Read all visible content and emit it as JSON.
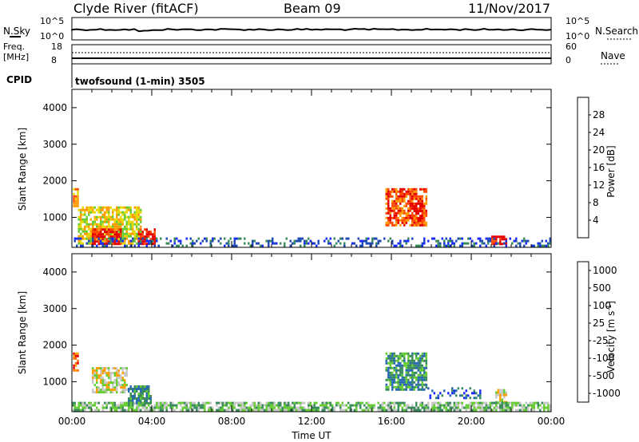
{
  "header": {
    "station": "Clyde River (fitACF)",
    "beam": "Beam 09",
    "date": "11/Nov/2017"
  },
  "top_panels": {
    "nsky_label": "N.Sky",
    "nsky_ticks": [
      "10^5",
      "10^0"
    ],
    "nsearch_label": "N.Search",
    "nsearch_ticks": [
      "10^5",
      "10^0"
    ],
    "freq_label_line1": "Freq.",
    "freq_label_line2": "[MHz]",
    "freq_ticks": [
      "18",
      "8"
    ],
    "nave_label": "Nave",
    "nave_ticks": [
      "60",
      "0"
    ],
    "cpid_label": "CPID",
    "cpid_text": "twofsound (1-min) 3505"
  },
  "chart_data": [
    {
      "type": "heatmap",
      "name": "power",
      "ylabel": "Slant Range [km]",
      "ylim": [
        180,
        4500
      ],
      "yticks": [
        "1000",
        "2000",
        "3000",
        "4000"
      ],
      "xticks": [
        "00:00",
        "04:00",
        "08:00",
        "12:00",
        "16:00",
        "20:00",
        "00:00"
      ],
      "colorbar_label": "Power [dB]",
      "colorbar_ticks": [
        "4",
        "8",
        "12",
        "16",
        "20",
        "24",
        "28"
      ],
      "colors": [
        "#1a2bff",
        "#1f4ab3",
        "#3a8c5e",
        "#66cc33",
        "#e6d800",
        "#ff9a00",
        "#ff4a00",
        "#e60000"
      ],
      "echo_regions": [
        {
          "t0": 0.05,
          "t1": 0.3,
          "r0": 1300,
          "r1": 1800,
          "level": 5
        },
        {
          "t0": 0.3,
          "t1": 3.5,
          "r0": 300,
          "r1": 1300,
          "level": 4
        },
        {
          "t0": 1.0,
          "t1": 2.5,
          "r0": 300,
          "r1": 700,
          "level": 7
        },
        {
          "t0": 3.3,
          "t1": 4.2,
          "r0": 300,
          "r1": 700,
          "level": 7
        },
        {
          "t0": 15.7,
          "t1": 17.8,
          "r0": 800,
          "r1": 1800,
          "level": 6
        },
        {
          "t0": 17.0,
          "t1": 17.6,
          "r0": 900,
          "r1": 1400,
          "level": 7
        },
        {
          "t0": 21.0,
          "t1": 21.8,
          "r0": 250,
          "r1": 500,
          "level": 7
        },
        {
          "t0": 0.0,
          "t1": 24.0,
          "r0": 200,
          "r1": 450,
          "level": 1
        }
      ]
    },
    {
      "type": "heatmap",
      "name": "velocity",
      "ylabel": "Slant Range [km]",
      "ylim": [
        180,
        4500
      ],
      "yticks": [
        "1000",
        "2000",
        "3000",
        "4000"
      ],
      "xticks": [
        "00:00",
        "04:00",
        "08:00",
        "12:00",
        "16:00",
        "20:00",
        "00:00"
      ],
      "xlabel": "Time UT",
      "colorbar_label": "Velocity [m s",
      "colorbar_label_sup": "-1",
      "colorbar_label_end": "]",
      "colorbar_ticks": [
        "1000",
        "500",
        "100",
        "25",
        "-25",
        "-100",
        "-500",
        "-1000"
      ],
      "colors": [
        "#1a2bff",
        "#2a6ab3",
        "#3a8c5e",
        "#66cc33",
        "#c8c8c8",
        "#ffa000",
        "#ff6a00",
        "#e60000"
      ],
      "echo_regions": [
        {
          "t0": 0.05,
          "t1": 0.3,
          "r0": 1300,
          "r1": 1800,
          "level": 6
        },
        {
          "t0": 1.0,
          "t1": 2.8,
          "r0": 700,
          "r1": 1400,
          "level": 4
        },
        {
          "t0": 2.8,
          "t1": 4.0,
          "r0": 400,
          "r1": 900,
          "level": 2
        },
        {
          "t0": 15.7,
          "t1": 17.8,
          "r0": 800,
          "r1": 1800,
          "level": 2
        },
        {
          "t0": 17.8,
          "t1": 20.5,
          "r0": 550,
          "r1": 850,
          "level": 1
        },
        {
          "t0": 21.2,
          "t1": 21.8,
          "r0": 250,
          "r1": 800,
          "level": 4
        },
        {
          "t0": 0.0,
          "t1": 24.0,
          "r0": 200,
          "r1": 450,
          "level": 3
        }
      ]
    }
  ]
}
